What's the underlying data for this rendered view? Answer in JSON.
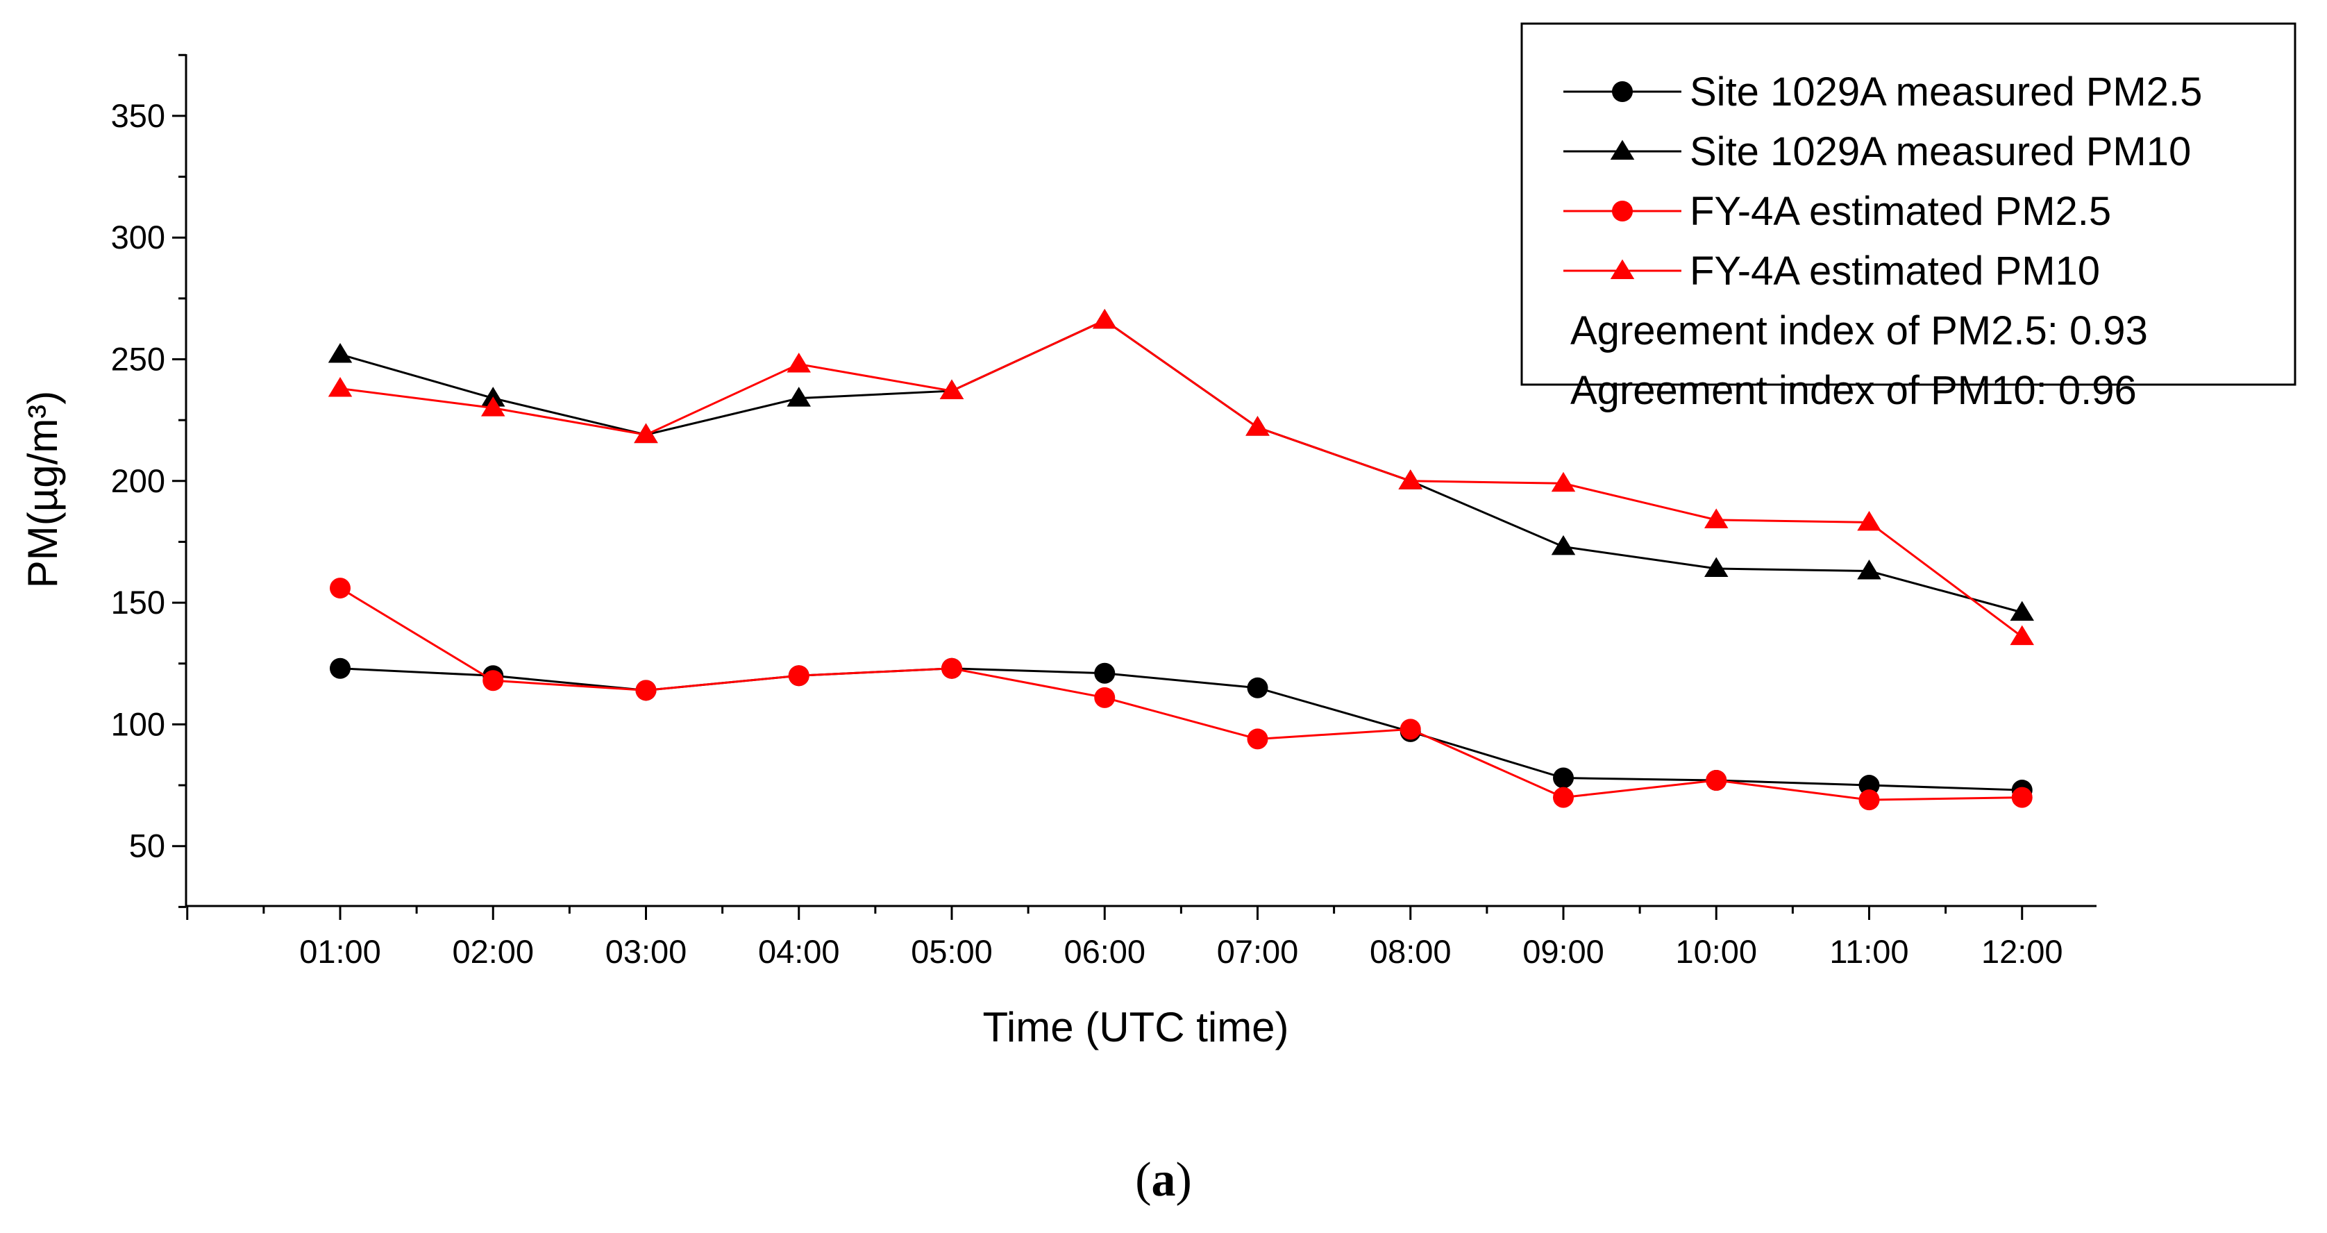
{
  "chart_data": {
    "type": "line",
    "title": "",
    "xlabel": "Time (UTC time)",
    "ylabel": "PM(µg/m³)",
    "categories": [
      "01:00",
      "02:00",
      "03:00",
      "04:00",
      "05:00",
      "06:00",
      "07:00",
      "08:00",
      "09:00",
      "10:00",
      "11:00",
      "12:00"
    ],
    "yticks": [
      50,
      100,
      150,
      200,
      250,
      300,
      350
    ],
    "ylim": [
      25,
      375
    ],
    "grid": false,
    "legend_position": "top-right",
    "series": [
      {
        "name": "Site 1029A measured PM2.5",
        "marker": "circle",
        "color": "#000000",
        "values": [
          123,
          120,
          114,
          120,
          123,
          121,
          115,
          97,
          78,
          77,
          75,
          73
        ]
      },
      {
        "name": "Site 1029A measured PM10",
        "marker": "triangle",
        "color": "#000000",
        "values": [
          252,
          234,
          219,
          234,
          237,
          266,
          222,
          200,
          173,
          164,
          163,
          146
        ]
      },
      {
        "name": "FY-4A estimated PM2.5",
        "marker": "circle",
        "color": "#ff0000",
        "values": [
          156,
          118,
          114,
          120,
          123,
          111,
          94,
          98,
          70,
          77,
          69,
          70
        ]
      },
      {
        "name": "FY-4A estimated PM10",
        "marker": "triangle",
        "color": "#ff0000",
        "values": [
          238,
          230,
          219,
          248,
          237,
          266,
          222,
          200,
          199,
          184,
          183,
          136
        ]
      }
    ],
    "annotations": [
      "Agreement index of PM2.5: 0.93",
      "Agreement index of PM10: 0.96"
    ]
  },
  "caption": {
    "open": "(",
    "label": "a",
    "close": ")"
  }
}
